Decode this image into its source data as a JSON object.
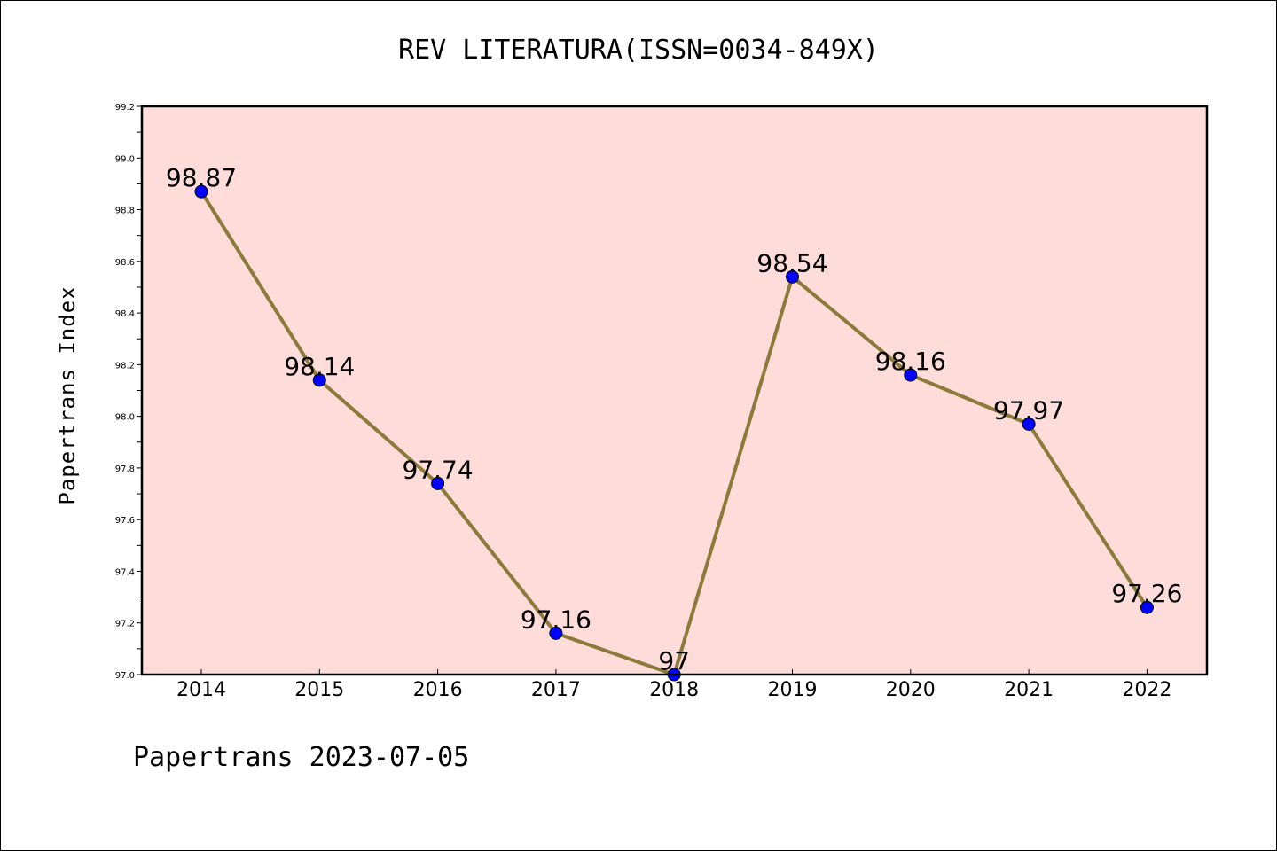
{
  "chart_data": {
    "type": "line",
    "title": "REV LITERATURA(ISSN=0034-849X)",
    "ylabel": "Papertrans Index",
    "xlabel": "",
    "categories": [
      "2014",
      "2015",
      "2016",
      "2017",
      "2018",
      "2019",
      "2020",
      "2021",
      "2022"
    ],
    "series": [
      {
        "values": [
          98.87,
          98.14,
          97.74,
          97.16,
          97,
          98.54,
          98.16,
          97.97,
          97.26
        ],
        "data_labels": [
          "98.87",
          "98.14",
          "97.74",
          "97.16",
          "97",
          "98.54",
          "98.16",
          "97.97",
          "97.26"
        ]
      }
    ],
    "ylim": [
      97.0,
      99.2
    ],
    "yticks": [
      "97.0",
      "97.2",
      "97.4",
      "97.6",
      "97.8",
      "98.0",
      "98.2",
      "98.4",
      "98.6",
      "98.8",
      "99.0",
      "99.2"
    ],
    "grid": false,
    "colors": {
      "plot_background": "#fddcd9",
      "line": "#8c7a3a",
      "marker": "#0000ff"
    }
  },
  "footer": "Papertrans 2023-07-05"
}
